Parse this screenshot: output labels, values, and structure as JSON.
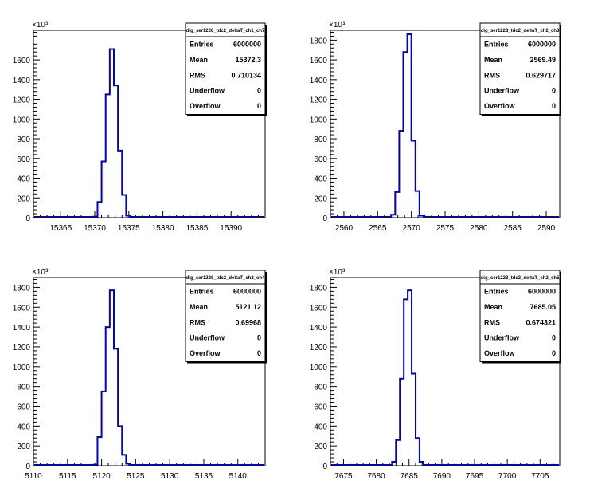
{
  "chart_data": [
    {
      "type": "histogram",
      "title": "dig_ser1228_tdc2_deltaT_ch1_ch7",
      "y_multiplier": "×10³",
      "xlim": [
        15361,
        15395
      ],
      "ylim": [
        0,
        1900
      ],
      "xticks": [
        15365,
        15370,
        15375,
        15380,
        15385,
        15390
      ],
      "yticks": [
        0,
        200,
        400,
        600,
        800,
        1000,
        1200,
        1400,
        1600
      ],
      "bins": [
        {
          "x0": 15369.8,
          "x1": 15370.4,
          "value": 10
        },
        {
          "x0": 15370.4,
          "x1": 15371.0,
          "value": 160
        },
        {
          "x0": 15371.0,
          "x1": 15371.6,
          "value": 570
        },
        {
          "x0": 15371.6,
          "x1": 15372.2,
          "value": 1250
        },
        {
          "x0": 15372.2,
          "x1": 15372.8,
          "value": 1710
        },
        {
          "x0": 15372.8,
          "x1": 15373.4,
          "value": 1340
        },
        {
          "x0": 15373.4,
          "x1": 15374.0,
          "value": 680
        },
        {
          "x0": 15374.0,
          "x1": 15374.6,
          "value": 230
        },
        {
          "x0": 15374.6,
          "x1": 15375.2,
          "value": 20
        }
      ],
      "stats": [
        {
          "label": "Entries",
          "value": "6000000"
        },
        {
          "label": "Mean",
          "value": "15372.3"
        },
        {
          "label": "RMS",
          "value": "0.710134"
        },
        {
          "label": "Underflow",
          "value": "0"
        },
        {
          "label": "Overflow",
          "value": "0"
        }
      ]
    },
    {
      "type": "histogram",
      "title": "dig_ser1228_tdc2_deltaT_ch2_ch3",
      "y_multiplier": "×10³",
      "xlim": [
        2558,
        2592
      ],
      "ylim": [
        0,
        1900
      ],
      "xticks": [
        2560,
        2565,
        2570,
        2575,
        2580,
        2585,
        2590
      ],
      "yticks": [
        0,
        200,
        400,
        600,
        800,
        1000,
        1200,
        1400,
        1600,
        1800
      ],
      "bins": [
        {
          "x0": 2567.0,
          "x1": 2567.6,
          "value": 30
        },
        {
          "x0": 2567.6,
          "x1": 2568.2,
          "value": 260
        },
        {
          "x0": 2568.2,
          "x1": 2568.8,
          "value": 880
        },
        {
          "x0": 2568.8,
          "x1": 2569.4,
          "value": 1680
        },
        {
          "x0": 2569.4,
          "x1": 2570.0,
          "value": 1860
        },
        {
          "x0": 2570.0,
          "x1": 2570.6,
          "value": 780
        },
        {
          "x0": 2570.6,
          "x1": 2571.2,
          "value": 270
        },
        {
          "x0": 2571.2,
          "x1": 2571.8,
          "value": 20
        }
      ],
      "stats": [
        {
          "label": "Entries",
          "value": "6000000"
        },
        {
          "label": "Mean",
          "value": "2569.49"
        },
        {
          "label": "RMS",
          "value": "0.629717"
        },
        {
          "label": "Underflow",
          "value": "0"
        },
        {
          "label": "Overflow",
          "value": "0"
        }
      ]
    },
    {
      "type": "histogram",
      "title": "dig_ser1228_tdc2_deltaT_ch2_ch4",
      "y_multiplier": "×10³",
      "xlim": [
        5110,
        5144
      ],
      "ylim": [
        0,
        1900
      ],
      "xticks": [
        5110,
        5115,
        5120,
        5125,
        5130,
        5135,
        5140
      ],
      "yticks": [
        0,
        200,
        400,
        600,
        800,
        1000,
        1200,
        1400,
        1600,
        1800
      ],
      "bins": [
        {
          "x0": 5118.8,
          "x1": 5119.4,
          "value": 10
        },
        {
          "x0": 5119.4,
          "x1": 5120.0,
          "value": 290
        },
        {
          "x0": 5120.0,
          "x1": 5120.6,
          "value": 750
        },
        {
          "x0": 5120.6,
          "x1": 5121.2,
          "value": 1400
        },
        {
          "x0": 5121.2,
          "x1": 5121.8,
          "value": 1770
        },
        {
          "x0": 5121.8,
          "x1": 5122.4,
          "value": 1180
        },
        {
          "x0": 5122.4,
          "x1": 5123.0,
          "value": 400
        },
        {
          "x0": 5123.0,
          "x1": 5123.6,
          "value": 110
        },
        {
          "x0": 5123.6,
          "x1": 5124.2,
          "value": 20
        }
      ],
      "stats": [
        {
          "label": "Entries",
          "value": "6000000"
        },
        {
          "label": "Mean",
          "value": "5121.12"
        },
        {
          "label": "RMS",
          "value": "0.69968"
        },
        {
          "label": "Underflow",
          "value": "0"
        },
        {
          "label": "Overflow",
          "value": "0"
        }
      ]
    },
    {
      "type": "histogram",
      "title": "dig_ser1228_tdc2_deltaT_ch2_ch5",
      "y_multiplier": "×10³",
      "xlim": [
        7673,
        7708
      ],
      "ylim": [
        0,
        1900
      ],
      "xticks": [
        7675,
        7680,
        7685,
        7690,
        7695,
        7700,
        7705
      ],
      "yticks": [
        0,
        200,
        400,
        600,
        800,
        1000,
        1200,
        1400,
        1600,
        1800
      ],
      "bins": [
        {
          "x0": 7682.4,
          "x1": 7683.0,
          "value": 40
        },
        {
          "x0": 7683.0,
          "x1": 7683.6,
          "value": 260
        },
        {
          "x0": 7683.6,
          "x1": 7684.2,
          "value": 880
        },
        {
          "x0": 7684.2,
          "x1": 7684.8,
          "value": 1680
        },
        {
          "x0": 7684.8,
          "x1": 7685.4,
          "value": 1770
        },
        {
          "x0": 7685.4,
          "x1": 7686.0,
          "value": 930
        },
        {
          "x0": 7686.0,
          "x1": 7686.6,
          "value": 280
        },
        {
          "x0": 7686.6,
          "x1": 7687.2,
          "value": 40
        }
      ],
      "stats": [
        {
          "label": "Entries",
          "value": "6000000"
        },
        {
          "label": "Mean",
          "value": "7685.05"
        },
        {
          "label": "RMS",
          "value": "0.674321"
        },
        {
          "label": "Underflow",
          "value": "0"
        },
        {
          "label": "Overflow",
          "value": "0"
        }
      ]
    }
  ],
  "colors": {
    "histogram_line": "#0000cc",
    "axis": "#000000",
    "background": "#ffffff"
  }
}
